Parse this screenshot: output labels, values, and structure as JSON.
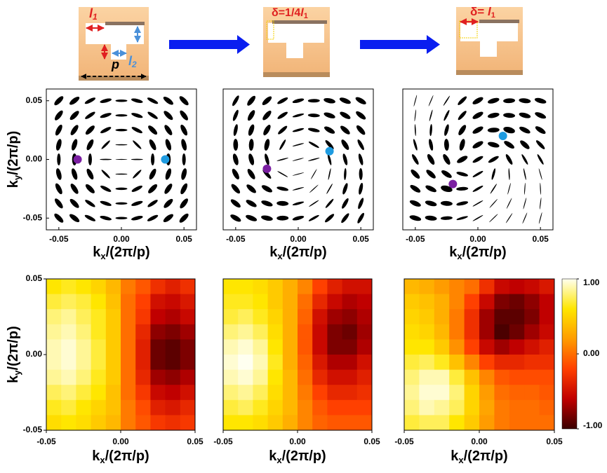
{
  "schematic": {
    "l1": [
      "l",
      "1"
    ],
    "p": "p",
    "l2": [
      "l",
      "2"
    ],
    "shift_quarter": [
      "δ=1/4",
      "l",
      "1"
    ],
    "shift_full": [
      "δ= ",
      "l",
      "1"
    ]
  },
  "chart_data": [
    {
      "type": "polarization",
      "xlim": [
        -0.06,
        0.06
      ],
      "ylim": [
        -0.06,
        0.06
      ],
      "xticks": [
        -0.05,
        {
          "value": 0,
          "label": "0.00"
        },
        0.05
      ],
      "yticks": [
        -0.05,
        {
          "value": 0,
          "label": "0.00"
        },
        0.05
      ],
      "xlabel": [
        "k",
        "x",
        "/(2π/p)"
      ],
      "ylabel": [
        "k",
        "y",
        "/(2π/p)"
      ],
      "color": "#000000",
      "x": [
        -0.05,
        -0.0375,
        -0.025,
        -0.0125,
        0,
        0.0125,
        0.025,
        0.0375,
        0.05
      ],
      "y": [
        0.05,
        0.0375,
        0.025,
        0.0125,
        0,
        -0.0125,
        -0.025,
        -0.0375,
        -0.05
      ],
      "angle": [
        [
          45,
          37,
          27,
          14,
          0,
          166,
          153,
          143,
          135
        ],
        [
          53,
          45,
          34,
          18,
          0,
          162,
          146,
          135,
          127
        ],
        [
          63,
          56,
          45,
          27,
          0,
          153,
          135,
          124,
          117
        ],
        [
          76,
          72,
          63,
          45,
          0,
          135,
          117,
          108,
          104
        ],
        [
          90,
          90,
          90,
          0,
          0,
          0,
          90,
          90,
          90
        ],
        [
          104,
          108,
          117,
          135,
          0,
          45,
          63,
          72,
          76
        ],
        [
          117,
          124,
          135,
          153,
          0,
          27,
          45,
          56,
          63
        ],
        [
          127,
          135,
          146,
          162,
          0,
          18,
          34,
          45,
          53
        ],
        [
          135,
          143,
          153,
          166,
          0,
          14,
          27,
          37,
          45
        ]
      ],
      "ellipticity": [
        [
          0.4,
          0.4,
          0.3,
          0.3,
          0.2,
          0.3,
          0.3,
          0.4,
          0.4
        ],
        [
          0.4,
          0.4,
          0.3,
          0.3,
          0.2,
          0.3,
          0.3,
          0.4,
          0.4
        ],
        [
          0.4,
          0.4,
          0.4,
          0.3,
          0.2,
          0.3,
          0.4,
          0.4,
          0.4
        ],
        [
          0.4,
          0.4,
          0.4,
          0.2,
          0.1,
          0.2,
          0.4,
          0.4,
          0.4
        ],
        [
          0.3,
          0.4,
          0.3,
          0.1,
          0.05,
          0.1,
          0.3,
          0.4,
          0.3
        ],
        [
          0.4,
          0.4,
          0.4,
          0.2,
          0.1,
          0.2,
          0.4,
          0.4,
          0.4
        ],
        [
          0.4,
          0.4,
          0.4,
          0.3,
          0.2,
          0.3,
          0.4,
          0.4,
          0.4
        ],
        [
          0.4,
          0.4,
          0.3,
          0.3,
          0.2,
          0.3,
          0.3,
          0.4,
          0.4
        ],
        [
          0.4,
          0.4,
          0.3,
          0.3,
          0.2,
          0.3,
          0.3,
          0.4,
          0.4
        ]
      ],
      "points": [
        {
          "color": "#7b1fa2",
          "x": -0.035,
          "y": 0
        },
        {
          "color": "#1e9be0",
          "x": 0.035,
          "y": 0
        }
      ]
    },
    {
      "type": "polarization",
      "xlim": [
        -0.06,
        0.06
      ],
      "ylim": [
        -0.06,
        0.06
      ],
      "xticks": [
        -0.05,
        {
          "value": 0,
          "label": "0.00"
        },
        0.05
      ],
      "xlabel": [
        "k",
        "x",
        "/(2π/p)"
      ],
      "color": "#000000",
      "x": [
        -0.05,
        -0.0375,
        -0.025,
        -0.0125,
        0,
        0.0125,
        0.025,
        0.0375,
        0.05
      ],
      "y": [
        0.05,
        0.0375,
        0.025,
        0.0125,
        0,
        -0.0125,
        -0.025,
        -0.0375,
        -0.05
      ],
      "angle": [
        [
          60,
          52,
          42,
          29,
          15,
          1,
          168,
          158,
          150
        ],
        [
          68,
          60,
          49,
          33,
          15,
          177,
          161,
          150,
          142
        ],
        [
          78,
          71,
          60,
          42,
          15,
          168,
          150,
          139,
          132
        ],
        [
          91,
          87,
          78,
          60,
          15,
          150,
          132,
          123,
          119
        ],
        [
          105,
          105,
          105,
          15,
          15,
          15,
          105,
          105,
          105
        ],
        [
          119,
          123,
          132,
          150,
          15,
          60,
          78,
          87,
          91
        ],
        [
          132,
          139,
          150,
          168,
          15,
          42,
          60,
          71,
          78
        ],
        [
          142,
          150,
          161,
          177,
          15,
          33,
          49,
          60,
          68
        ],
        [
          150,
          158,
          168,
          1,
          15,
          29,
          42,
          52,
          60
        ]
      ],
      "ellipticity": [
        [
          0.3,
          0.4,
          0.4,
          0.3,
          0.3,
          0.3,
          0.4,
          0.4,
          0.4
        ],
        [
          0.3,
          0.4,
          0.4,
          0.3,
          0.2,
          0.3,
          0.4,
          0.4,
          0.4
        ],
        [
          0.3,
          0.4,
          0.4,
          0.3,
          0.2,
          0.3,
          0.4,
          0.4,
          0.4
        ],
        [
          0.4,
          0.4,
          0.4,
          0.2,
          0.1,
          0.2,
          0.3,
          0.4,
          0.3
        ],
        [
          0.4,
          0.4,
          0.3,
          0.1,
          0.05,
          0.1,
          0.2,
          0.3,
          0.3
        ],
        [
          0.4,
          0.4,
          0.3,
          0.1,
          0.05,
          0.05,
          0.1,
          0.2,
          0.3
        ],
        [
          0.4,
          0.4,
          0.4,
          0.3,
          0.1,
          0.05,
          0.1,
          0.3,
          0.3
        ],
        [
          0.4,
          0.4,
          0.4,
          0.4,
          0.2,
          0.1,
          0.2,
          0.3,
          0.3
        ],
        [
          0.4,
          0.4,
          0.4,
          0.4,
          0.3,
          0.2,
          0.3,
          0.3,
          0.3
        ]
      ],
      "points": [
        {
          "color": "#7b1fa2",
          "x": -0.025,
          "y": -0.008
        },
        {
          "color": "#1e9be0",
          "x": 0.025,
          "y": 0.007
        }
      ]
    },
    {
      "type": "polarization",
      "xlim": [
        -0.06,
        0.06
      ],
      "ylim": [
        -0.06,
        0.06
      ],
      "xticks": [
        -0.05,
        {
          "value": 0,
          "label": "0.00"
        },
        0.05
      ],
      "xlabel": [
        "k",
        "x",
        "/(2π/p)"
      ],
      "color": "#000000",
      "x": [
        -0.05,
        -0.0375,
        -0.025,
        -0.0125,
        0,
        0.0125,
        0.025,
        0.0375,
        0.05
      ],
      "y": [
        0.05,
        0.0375,
        0.025,
        0.0125,
        0,
        -0.0125,
        -0.025,
        -0.0375,
        -0.05
      ],
      "angle": [
        [
          75,
          67,
          57,
          44,
          30,
          16,
          3,
          173,
          165
        ],
        [
          83,
          75,
          64,
          48,
          30,
          12,
          176,
          165,
          157
        ],
        [
          93,
          86,
          75,
          57,
          30,
          3,
          165,
          154,
          147
        ],
        [
          106,
          102,
          93,
          75,
          30,
          165,
          147,
          138,
          134
        ],
        [
          120,
          120,
          120,
          30,
          30,
          30,
          120,
          120,
          120
        ],
        [
          134,
          138,
          147,
          165,
          30,
          75,
          93,
          102,
          106
        ],
        [
          147,
          154,
          165,
          3,
          30,
          57,
          75,
          86,
          93
        ],
        [
          157,
          165,
          176,
          12,
          30,
          48,
          64,
          75,
          83
        ],
        [
          165,
          173,
          3,
          16,
          30,
          44,
          57,
          67,
          75
        ]
      ],
      "ellipticity": [
        [
          0.05,
          0.05,
          0.1,
          0.3,
          0.4,
          0.4,
          0.4,
          0.4,
          0.4
        ],
        [
          0.05,
          0.1,
          0.2,
          0.3,
          0.4,
          0.4,
          0.4,
          0.4,
          0.4
        ],
        [
          0.1,
          0.2,
          0.3,
          0.4,
          0.4,
          0.4,
          0.5,
          0.4,
          0.4
        ],
        [
          0.2,
          0.3,
          0.4,
          0.4,
          0.4,
          0.4,
          0.4,
          0.4,
          0.3
        ],
        [
          0.3,
          0.4,
          0.4,
          0.4,
          0.3,
          0.3,
          0.3,
          0.2,
          0.2
        ],
        [
          0.4,
          0.4,
          0.4,
          0.3,
          0.2,
          0.2,
          0.1,
          0.1,
          0.05
        ],
        [
          0.4,
          0.4,
          0.5,
          0.3,
          0.2,
          0.1,
          0.05,
          0.05,
          0.05
        ],
        [
          0.4,
          0.4,
          0.4,
          0.3,
          0.1,
          0.05,
          0.05,
          0.05,
          0.05
        ],
        [
          0.4,
          0.4,
          0.3,
          0.2,
          0.1,
          0.05,
          0.05,
          0.05,
          0.05
        ]
      ],
      "points": [
        {
          "color": "#7b1fa2",
          "x": -0.02,
          "y": -0.021
        },
        {
          "color": "#1e9be0",
          "x": 0.02,
          "y": 0.02
        }
      ]
    },
    {
      "type": "heatmap",
      "xlim": [
        -0.05,
        0.05
      ],
      "ylim": [
        -0.05,
        0.05
      ],
      "vlim": [
        -1,
        1
      ],
      "xticks": [
        -0.05,
        {
          "value": 0,
          "label": "0.00"
        },
        0.05
      ],
      "yticks": [
        -0.05,
        {
          "value": 0,
          "label": "0.00"
        },
        0.05
      ],
      "xlabel": [
        "k",
        "x",
        "/(2π/p)"
      ],
      "ylabel": [
        "k",
        "y",
        "/(2π/p)"
      ],
      "colormap": [
        "#3a0000",
        "#c00000",
        "#ff4000",
        "#ff9c00",
        "#ffe600",
        "#fffff0"
      ],
      "values": [
        [
          0.6,
          0.65,
          0.6,
          0.5,
          0.35,
          0.05,
          -0.1,
          -0.3,
          -0.4,
          -0.3
        ],
        [
          0.7,
          0.75,
          0.7,
          0.6,
          0.4,
          0,
          -0.2,
          -0.5,
          -0.55,
          -0.45
        ],
        [
          0.8,
          0.85,
          0.75,
          0.65,
          0.45,
          0,
          -0.25,
          -0.6,
          -0.65,
          -0.55
        ],
        [
          0.85,
          0.9,
          0.8,
          0.65,
          0.45,
          0,
          -0.35,
          -0.75,
          -0.8,
          -0.7
        ],
        [
          0.9,
          0.95,
          0.85,
          0.7,
          0.45,
          0,
          -0.4,
          -0.85,
          -0.9,
          -0.8
        ],
        [
          0.9,
          0.95,
          0.85,
          0.7,
          0.45,
          0,
          -0.4,
          -0.85,
          -0.9,
          -0.8
        ],
        [
          0.85,
          0.9,
          0.8,
          0.65,
          0.45,
          0,
          -0.35,
          -0.7,
          -0.75,
          -0.65
        ],
        [
          0.75,
          0.8,
          0.7,
          0.6,
          0.4,
          0,
          -0.25,
          -0.55,
          -0.6,
          -0.5
        ],
        [
          0.65,
          0.7,
          0.6,
          0.5,
          0.4,
          0.05,
          -0.15,
          -0.4,
          -0.45,
          -0.35
        ],
        [
          0.55,
          0.6,
          0.55,
          0.45,
          0.35,
          0.05,
          -0.1,
          -0.25,
          -0.3,
          -0.25
        ]
      ]
    },
    {
      "type": "heatmap",
      "xlim": [
        -0.05,
        0.05
      ],
      "ylim": [
        -0.05,
        0.05
      ],
      "vlim": [
        -1,
        1
      ],
      "xticks": [
        -0.05,
        {
          "value": 0,
          "label": "0.00"
        },
        0.05
      ],
      "xlabel": [
        "k",
        "x",
        "/(2π/p)"
      ],
      "colormap": [
        "#3a0000",
        "#c00000",
        "#ff4000",
        "#ff9c00",
        "#ffe600",
        "#fffff0"
      ],
      "values": [
        [
          0.6,
          0.6,
          0.55,
          0.45,
          0.3,
          0.1,
          -0.2,
          -0.4,
          -0.5,
          -0.5
        ],
        [
          0.65,
          0.65,
          0.6,
          0.45,
          0.3,
          0,
          -0.35,
          -0.55,
          -0.65,
          -0.6
        ],
        [
          0.7,
          0.75,
          0.65,
          0.5,
          0.3,
          -0.05,
          -0.5,
          -0.7,
          -0.75,
          -0.65
        ],
        [
          0.8,
          0.85,
          0.75,
          0.55,
          0.3,
          -0.1,
          -0.55,
          -0.8,
          -0.85,
          -0.7
        ],
        [
          0.9,
          0.95,
          0.85,
          0.6,
          0.3,
          -0.1,
          -0.55,
          -0.8,
          -0.8,
          -0.65
        ],
        [
          0.95,
          1,
          0.9,
          0.65,
          0.3,
          -0.05,
          -0.45,
          -0.65,
          -0.65,
          -0.5
        ],
        [
          0.9,
          0.95,
          0.85,
          0.6,
          0.35,
          0,
          -0.35,
          -0.5,
          -0.5,
          -0.4
        ],
        [
          0.8,
          0.85,
          0.75,
          0.55,
          0.35,
          0.05,
          -0.2,
          -0.35,
          -0.35,
          -0.3
        ],
        [
          0.7,
          0.75,
          0.65,
          0.5,
          0.35,
          0.1,
          -0.1,
          -0.2,
          -0.2,
          -0.2
        ],
        [
          0.6,
          0.6,
          0.55,
          0.45,
          0.3,
          0.1,
          -0.05,
          -0.1,
          -0.1,
          -0.1
        ]
      ]
    },
    {
      "type": "heatmap",
      "xlim": [
        -0.05,
        0.05
      ],
      "ylim": [
        -0.05,
        0.05
      ],
      "vlim": [
        -1,
        1
      ],
      "xticks": [
        -0.05,
        {
          "value": 0,
          "label": "0.00"
        },
        0.05
      ],
      "xlabel": [
        "k",
        "x",
        "/(2π/p)"
      ],
      "colormap": [
        "#3a0000",
        "#c00000",
        "#ff4000",
        "#ff9c00",
        "#ffe600",
        "#fffff0"
      ],
      "values": [
        [
          0.35,
          0.3,
          0.2,
          0.1,
          0,
          -0.3,
          -0.55,
          -0.6,
          -0.55,
          -0.45
        ],
        [
          0.45,
          0.4,
          0.3,
          0.1,
          -0.2,
          -0.55,
          -0.8,
          -0.85,
          -0.75,
          -0.6
        ],
        [
          0.5,
          0.45,
          0.3,
          0.05,
          -0.3,
          -0.7,
          -0.9,
          -0.9,
          -0.8,
          -0.6
        ],
        [
          0.55,
          0.5,
          0.35,
          0.05,
          -0.3,
          -0.7,
          -0.95,
          -0.85,
          -0.7,
          -0.55
        ],
        [
          0.6,
          0.6,
          0.45,
          0.15,
          -0.2,
          -0.55,
          -0.7,
          -0.6,
          -0.5,
          -0.4
        ],
        [
          0.7,
          0.75,
          0.65,
          0.4,
          0.1,
          -0.2,
          -0.35,
          -0.35,
          -0.3,
          -0.3
        ],
        [
          0.8,
          0.9,
          0.9,
          0.7,
          0.4,
          0.1,
          -0.1,
          -0.15,
          -0.15,
          -0.15
        ],
        [
          0.85,
          0.95,
          0.95,
          0.8,
          0.5,
          0.2,
          0,
          -0.05,
          -0.05,
          -0.1
        ],
        [
          0.8,
          0.9,
          0.85,
          0.75,
          0.5,
          0.25,
          0.05,
          0,
          0,
          -0.05
        ],
        [
          0.7,
          0.75,
          0.75,
          0.6,
          0.45,
          0.2,
          0.05,
          0,
          0,
          0
        ]
      ],
      "colorbar": {
        "ticks": [
          {
            "value": 1,
            "label": "1.00"
          },
          {
            "value": 0,
            "label": "0.00"
          },
          {
            "value": -1,
            "label": "-1.00"
          }
        ]
      }
    }
  ]
}
